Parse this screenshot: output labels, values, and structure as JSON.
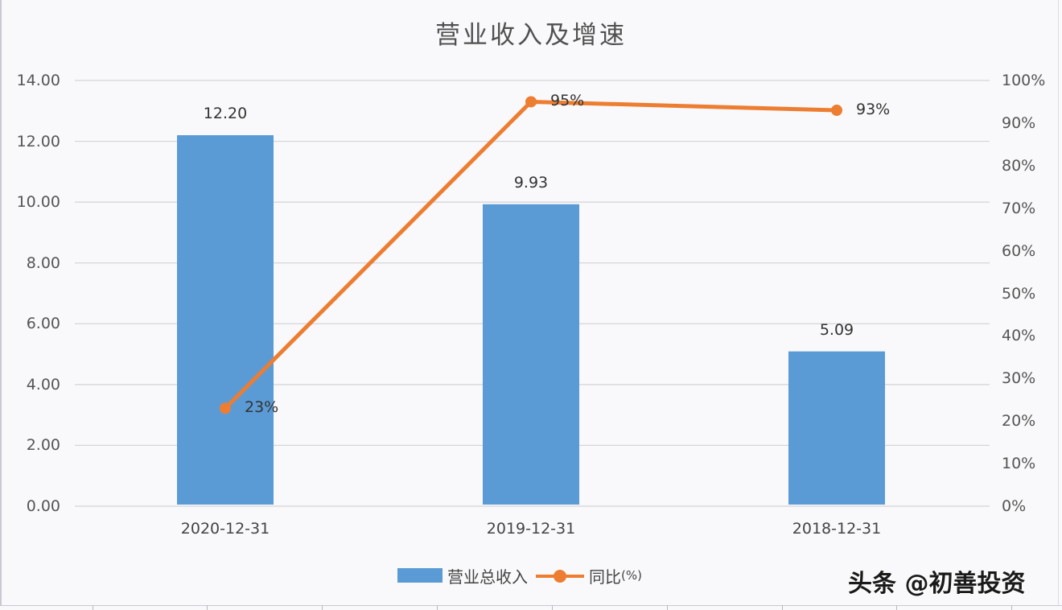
{
  "title": "营业收入及增速",
  "watermark": "头条 @初善投资",
  "colors": {
    "bar": "#5b9bd5",
    "line": "#ed7d31",
    "gridline": "#d4d4d8",
    "background": "#f9f9fb"
  },
  "axes": {
    "left_ticks": [
      "14.00",
      "12.00",
      "10.00",
      "8.00",
      "6.00",
      "4.00",
      "2.00",
      "0.00"
    ],
    "right_ticks": [
      "100%",
      "90%",
      "80%",
      "70%",
      "60%",
      "50%",
      "40%",
      "30%",
      "20%",
      "10%",
      "0%"
    ],
    "categories": [
      "2020-12-31",
      "2019-12-31",
      "2018-12-31"
    ]
  },
  "bar_labels": [
    "12.20",
    "9.93",
    "5.09"
  ],
  "line_labels": [
    "23%",
    "95%",
    "93%"
  ],
  "legend": {
    "bar_label": "营业总收入",
    "line_label": "同比",
    "line_unit": "(%)"
  },
  "chart_data": {
    "type": "bar",
    "title": "营业收入及增速",
    "categories": [
      "2020-12-31",
      "2019-12-31",
      "2018-12-31"
    ],
    "series": [
      {
        "name": "营业总收入",
        "type": "bar",
        "axis": "left",
        "values": [
          12.2,
          9.93,
          5.09
        ]
      },
      {
        "name": "同比(%)",
        "type": "line",
        "axis": "right",
        "values": [
          23,
          95,
          93
        ],
        "unit": "%"
      }
    ],
    "xlabel": "",
    "ylabel": "",
    "ylim": [
      0,
      14
    ],
    "y2lim": [
      0,
      100
    ],
    "y_ticks": [
      0,
      2,
      4,
      6,
      8,
      10,
      12,
      14
    ],
    "y2_ticks": [
      0,
      10,
      20,
      30,
      40,
      50,
      60,
      70,
      80,
      90,
      100
    ],
    "grid": true,
    "legend_position": "bottom",
    "data_labels": true
  }
}
